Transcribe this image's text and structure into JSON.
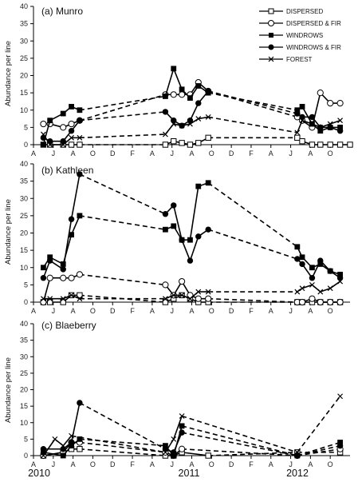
{
  "legend": [
    {
      "key": "dispersed",
      "label": "DISPERSED"
    },
    {
      "key": "dispersed_fir",
      "label": "DISPERSED & FIR"
    },
    {
      "key": "windrows",
      "label": "WINDROWS"
    },
    {
      "key": "windrows_fir",
      "label": "WINDROWS & FIR"
    },
    {
      "key": "forest",
      "label": "FOREST"
    }
  ],
  "years": [
    "2010",
    "2011",
    "2012"
  ],
  "chart_data": [
    {
      "type": "line",
      "title": "(a) Munro",
      "ylabel": "Abundance per line",
      "ylim": [
        0,
        40
      ],
      "yticks": [
        0,
        5,
        10,
        15,
        20,
        25,
        30,
        35,
        40
      ],
      "xticks": [
        "A",
        "J",
        "A",
        "O",
        "D",
        "F",
        "A",
        "J",
        "A",
        "O",
        "D",
        "F",
        "A",
        "J",
        "A",
        "O"
      ],
      "series": [
        {
          "name": "DISPERSED",
          "points": [
            [
              0.6,
              0
            ],
            [
              1,
              0
            ],
            [
              1.8,
              0
            ],
            [
              2.3,
              0
            ],
            [
              2.8,
              0
            ],
            [
              8,
              0
            ],
            [
              8.5,
              1
            ],
            [
              9,
              0.5
            ],
            [
              9.5,
              0
            ],
            [
              10,
              0.5
            ],
            [
              10.6,
              2
            ],
            [
              16,
              2
            ],
            [
              16.3,
              1
            ],
            [
              16.9,
              0
            ],
            [
              17.4,
              0
            ],
            [
              18,
              0
            ],
            [
              18.6,
              0
            ],
            [
              19.2,
              0
            ]
          ]
        },
        {
          "name": "DISPERSED & FIR",
          "points": [
            [
              0.6,
              6
            ],
            [
              1,
              6
            ],
            [
              1.8,
              5
            ],
            [
              2.3,
              6
            ],
            [
              2.8,
              7
            ],
            [
              8,
              14.5
            ],
            [
              8.5,
              14.5
            ],
            [
              9,
              14.5
            ],
            [
              9.5,
              14.5
            ],
            [
              10,
              18
            ],
            [
              10.6,
              15.5
            ],
            [
              16,
              8
            ],
            [
              16.3,
              7
            ],
            [
              16.9,
              5
            ],
            [
              17.4,
              15
            ],
            [
              18,
              12
            ],
            [
              18.6,
              12
            ]
          ]
        },
        {
          "name": "WINDROWS",
          "points": [
            [
              0.6,
              0
            ],
            [
              1,
              7
            ],
            [
              1.8,
              9
            ],
            [
              2.3,
              11
            ],
            [
              2.8,
              10
            ],
            [
              8,
              14
            ],
            [
              8.5,
              22
            ],
            [
              9,
              16
            ],
            [
              9.5,
              13.5
            ],
            [
              10,
              17
            ],
            [
              10.6,
              15
            ],
            [
              16,
              10
            ],
            [
              16.3,
              11
            ],
            [
              16.9,
              6
            ],
            [
              17.4,
              4
            ],
            [
              18,
              5
            ],
            [
              18.6,
              5
            ]
          ]
        },
        {
          "name": "WINDROWS & FIR",
          "points": [
            [
              0.6,
              2
            ],
            [
              1,
              1
            ],
            [
              1.8,
              1
            ],
            [
              2.3,
              4
            ],
            [
              2.8,
              7
            ],
            [
              8,
              9.5
            ],
            [
              8.5,
              7
            ],
            [
              9,
              5.5
            ],
            [
              9.5,
              7
            ],
            [
              10,
              12
            ],
            [
              10.6,
              15.5
            ],
            [
              16,
              9
            ],
            [
              16.3,
              8
            ],
            [
              16.9,
              8
            ],
            [
              17.4,
              5
            ],
            [
              18,
              5
            ],
            [
              18.6,
              4
            ]
          ]
        },
        {
          "name": "FOREST",
          "points": [
            [
              0.6,
              3
            ],
            [
              1,
              0
            ],
            [
              1.8,
              0
            ],
            [
              2.3,
              2
            ],
            [
              2.8,
              2
            ],
            [
              8,
              3
            ],
            [
              8.5,
              6
            ],
            [
              9,
              5.5
            ],
            [
              9.5,
              6
            ],
            [
              10,
              7.5
            ],
            [
              10.6,
              8
            ],
            [
              16,
              3.5
            ],
            [
              16.3,
              7
            ],
            [
              16.9,
              6
            ],
            [
              17.4,
              5
            ],
            [
              18,
              6
            ],
            [
              18.6,
              7
            ]
          ]
        }
      ]
    },
    {
      "type": "line",
      "title": "(b) Kathleen",
      "ylabel": "Abundance per line",
      "ylim": [
        0,
        40
      ],
      "yticks": [
        0,
        5,
        10,
        15,
        20,
        25,
        30,
        35,
        40
      ],
      "xticks": [
        "A",
        "J",
        "A",
        "O",
        "D",
        "F",
        "A",
        "J",
        "A",
        "O",
        "D",
        "F",
        "A",
        "J",
        "A",
        "O"
      ],
      "series": [
        {
          "name": "DISPERSED",
          "points": [
            [
              0.6,
              0
            ],
            [
              1,
              0
            ],
            [
              1.8,
              0
            ],
            [
              2.3,
              2
            ],
            [
              2.8,
              2
            ],
            [
              8,
              0
            ],
            [
              8.5,
              1
            ],
            [
              9,
              2
            ],
            [
              9.5,
              1
            ],
            [
              10,
              0
            ],
            [
              10.6,
              0
            ],
            [
              16,
              0
            ],
            [
              16.3,
              0
            ],
            [
              16.9,
              0
            ],
            [
              17.4,
              0
            ],
            [
              18,
              0
            ],
            [
              18.6,
              0
            ]
          ]
        },
        {
          "name": "DISPERSED & FIR",
          "points": [
            [
              0.6,
              0
            ],
            [
              1,
              7
            ],
            [
              1.8,
              7
            ],
            [
              2.3,
              7
            ],
            [
              2.8,
              8
            ],
            [
              8,
              5
            ],
            [
              8.5,
              2
            ],
            [
              9,
              6
            ],
            [
              9.5,
              2
            ],
            [
              10,
              1
            ],
            [
              10.6,
              1
            ],
            [
              16,
              0
            ],
            [
              16.3,
              0
            ],
            [
              16.9,
              1
            ],
            [
              17.4,
              0
            ],
            [
              18,
              0
            ],
            [
              18.6,
              0
            ]
          ]
        },
        {
          "name": "WINDROWS",
          "points": [
            [
              0.6,
              10
            ],
            [
              1,
              13
            ],
            [
              1.8,
              11
            ],
            [
              2.3,
              19.5
            ],
            [
              2.8,
              25
            ],
            [
              8,
              21
            ],
            [
              8.5,
              22
            ],
            [
              9,
              18
            ],
            [
              9.5,
              18
            ],
            [
              10,
              33.5
            ],
            [
              10.6,
              34.5
            ],
            [
              16,
              16
            ],
            [
              16.3,
              13
            ],
            [
              16.9,
              10
            ],
            [
              17.4,
              11
            ],
            [
              18,
              9
            ],
            [
              18.6,
              8
            ]
          ]
        },
        {
          "name": "WINDROWS & FIR",
          "points": [
            [
              0.6,
              7
            ],
            [
              1,
              12
            ],
            [
              1.8,
              9.5
            ],
            [
              2.3,
              24
            ],
            [
              2.8,
              37
            ],
            [
              8,
              25.5
            ],
            [
              8.5,
              28
            ],
            [
              9,
              18
            ],
            [
              9.5,
              12
            ],
            [
              10,
              19
            ],
            [
              10.6,
              21
            ],
            [
              16,
              12.5
            ],
            [
              16.3,
              11
            ],
            [
              16.9,
              7
            ],
            [
              17.4,
              12
            ],
            [
              18,
              9
            ],
            [
              18.6,
              7
            ]
          ]
        },
        {
          "name": "FOREST",
          "points": [
            [
              0.6,
              1
            ],
            [
              1,
              1
            ],
            [
              1.8,
              1
            ],
            [
              2.3,
              2
            ],
            [
              2.8,
              1
            ],
            [
              8,
              1
            ],
            [
              8.5,
              2
            ],
            [
              9,
              2
            ],
            [
              9.5,
              1
            ],
            [
              10,
              3
            ],
            [
              10.6,
              3
            ],
            [
              16,
              3
            ],
            [
              16.3,
              4
            ],
            [
              16.9,
              5
            ],
            [
              17.4,
              3
            ],
            [
              18,
              4
            ],
            [
              18.6,
              6
            ]
          ]
        }
      ]
    },
    {
      "type": "line",
      "title": "(c) Blaeberry",
      "ylabel": "Abundance per line",
      "ylim": [
        0,
        40
      ],
      "yticks": [
        0,
        5,
        10,
        15,
        20,
        25,
        30,
        35,
        40
      ],
      "xticks": [
        "A",
        "J",
        "A",
        "O",
        "D",
        "F",
        "A",
        "J",
        "A",
        "O",
        "D",
        "F",
        "A",
        "J",
        "A",
        "O"
      ],
      "series": [
        {
          "name": "DISPERSED",
          "points": [
            [
              0.6,
              0
            ],
            [
              1.8,
              1
            ],
            [
              2.3,
              2
            ],
            [
              2.8,
              2
            ],
            [
              8,
              0
            ],
            [
              8.5,
              0
            ],
            [
              9,
              1
            ],
            [
              10.6,
              0
            ],
            [
              16,
              1
            ],
            [
              18.6,
              1
            ]
          ]
        },
        {
          "name": "DISPERSED & FIR",
          "points": [
            [
              0.6,
              0
            ],
            [
              1.8,
              1
            ],
            [
              2.3,
              4
            ],
            [
              2.8,
              4
            ],
            [
              8,
              1
            ],
            [
              8.5,
              0
            ],
            [
              9,
              2
            ],
            [
              16,
              0
            ],
            [
              18.6,
              2
            ]
          ]
        },
        {
          "name": "WINDROWS",
          "points": [
            [
              0.6,
              1
            ],
            [
              1.8,
              0
            ],
            [
              2.3,
              3
            ],
            [
              2.8,
              5
            ],
            [
              8,
              3
            ],
            [
              8.5,
              0
            ],
            [
              9,
              9
            ],
            [
              16,
              0
            ],
            [
              18.6,
              4
            ]
          ]
        },
        {
          "name": "WINDROWS & FIR",
          "points": [
            [
              0.6,
              2
            ],
            [
              1.8,
              2
            ],
            [
              2.3,
              4
            ],
            [
              2.8,
              16
            ],
            [
              8,
              2
            ],
            [
              8.5,
              1
            ],
            [
              9,
              7
            ],
            [
              16,
              0
            ],
            [
              18.6,
              3
            ]
          ]
        },
        {
          "name": "FOREST",
          "points": [
            [
              0.6,
              0
            ],
            [
              1.3,
              5
            ],
            [
              1.8,
              3
            ],
            [
              2.3,
              6
            ],
            [
              8,
              1
            ],
            [
              8.5,
              5
            ],
            [
              9,
              12
            ],
            [
              16,
              1
            ],
            [
              18.6,
              18
            ]
          ]
        }
      ]
    }
  ]
}
